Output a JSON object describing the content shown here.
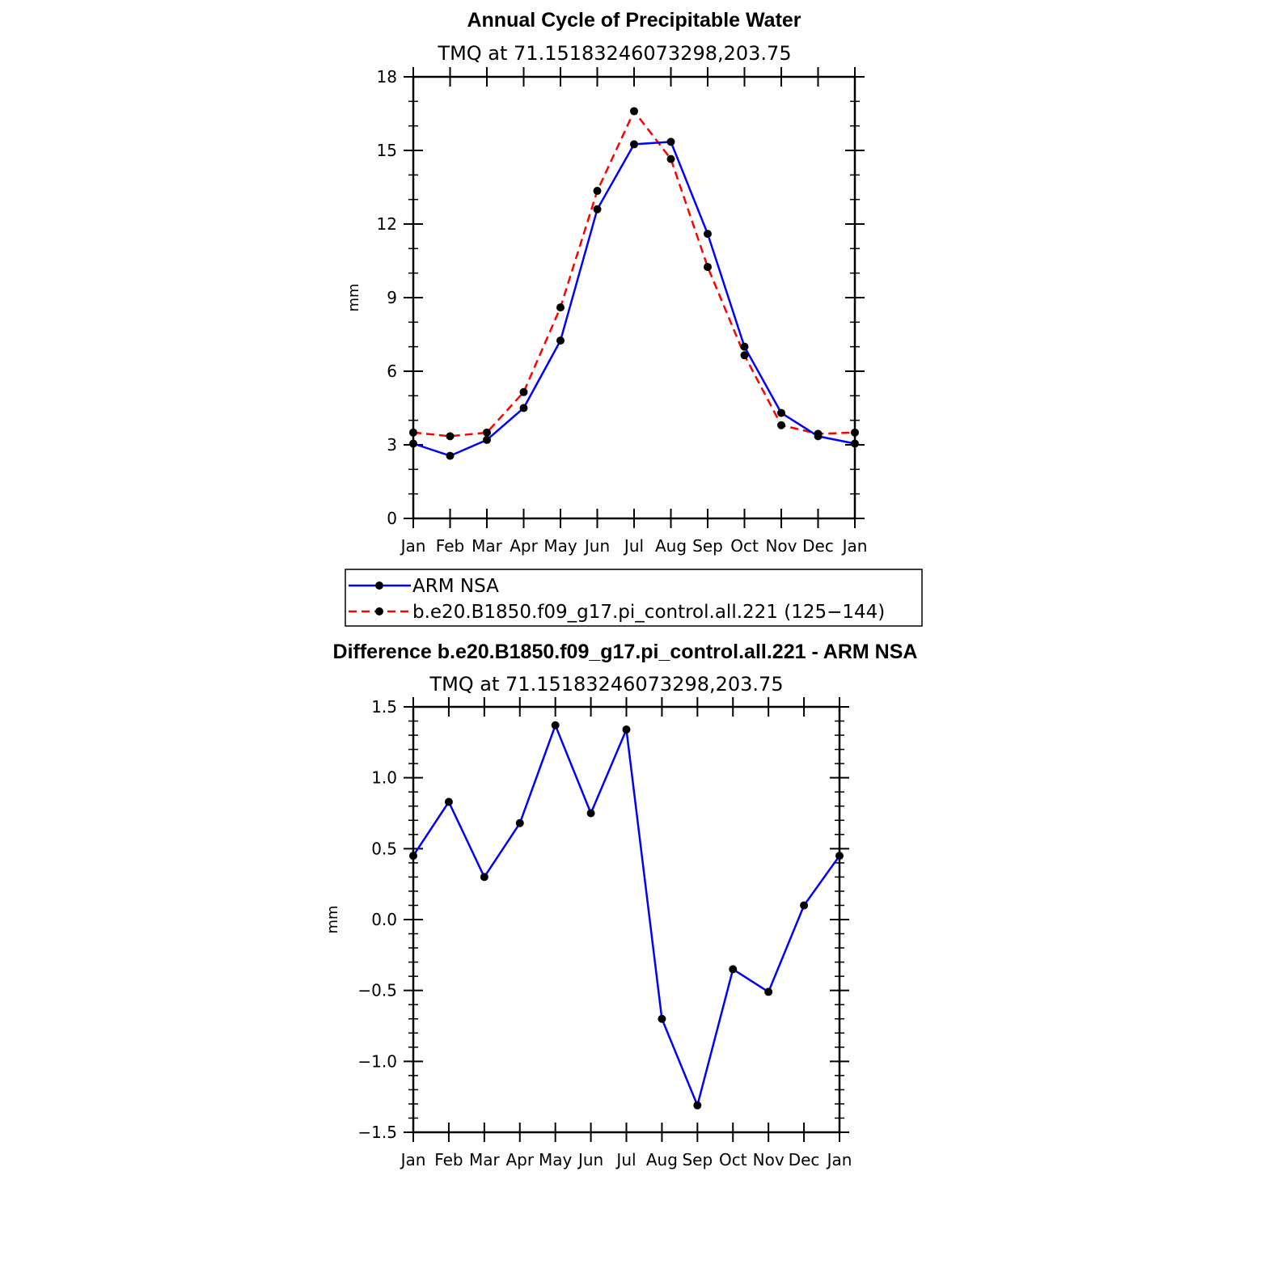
{
  "chart_data": [
    {
      "type": "line",
      "title": "Annual Cycle of Precipitable Water",
      "subtitle": "TMQ  at  71.15183246073298,203.75",
      "xlabel": "",
      "ylabel": "mm",
      "categories": [
        "Jan",
        "Feb",
        "Mar",
        "Apr",
        "May",
        "Jun",
        "Jul",
        "Aug",
        "Sep",
        "Oct",
        "Nov",
        "Dec",
        "Jan"
      ],
      "ylim": [
        0,
        18
      ],
      "yticks": [
        0,
        3,
        6,
        9,
        12,
        15,
        18
      ],
      "ytick_labels": [
        "0",
        "3",
        "6",
        "9",
        "12",
        "15",
        "18"
      ],
      "series": [
        {
          "name": "ARM  NSA",
          "color": "#0000ff",
          "dash": "solid",
          "values": [
            3.05,
            2.55,
            3.2,
            4.5,
            7.25,
            12.6,
            15.25,
            15.35,
            11.6,
            7.0,
            4.3,
            3.35,
            3.05
          ]
        },
        {
          "name": "b.e20.B1850.f09_g17.pi_control.all.221  (125−144)",
          "color": "#ff0000",
          "dash": "dashed",
          "values": [
            3.5,
            3.35,
            3.5,
            5.15,
            8.6,
            13.35,
            16.6,
            14.65,
            10.25,
            6.65,
            3.8,
            3.45,
            3.5
          ]
        }
      ],
      "legend": "bottom"
    },
    {
      "type": "line",
      "title": "Difference b.e20.B1850.f09_g17.pi_control.all.221 - ARM NSA",
      "subtitle": "TMQ  at  71.15183246073298,203.75",
      "xlabel": "",
      "ylabel": "mm",
      "categories": [
        "Jan",
        "Feb",
        "Mar",
        "Apr",
        "May",
        "Jun",
        "Jul",
        "Aug",
        "Sep",
        "Oct",
        "Nov",
        "Dec",
        "Jan"
      ],
      "ylim": [
        -1.5,
        1.5
      ],
      "yticks": [
        -1.5,
        -1.0,
        -0.5,
        0.0,
        0.5,
        1.0,
        1.5
      ],
      "ytick_labels": [
        "−1.5",
        "−1.0",
        "−0.5",
        "0.0",
        "0.5",
        "1.0",
        "1.5"
      ],
      "series": [
        {
          "name": "Difference",
          "color": "#0000ff",
          "dash": "solid",
          "values": [
            0.45,
            0.83,
            0.3,
            0.68,
            1.37,
            0.75,
            1.34,
            -0.7,
            -1.31,
            -0.35,
            -0.51,
            0.1,
            0.45
          ]
        }
      ]
    }
  ]
}
